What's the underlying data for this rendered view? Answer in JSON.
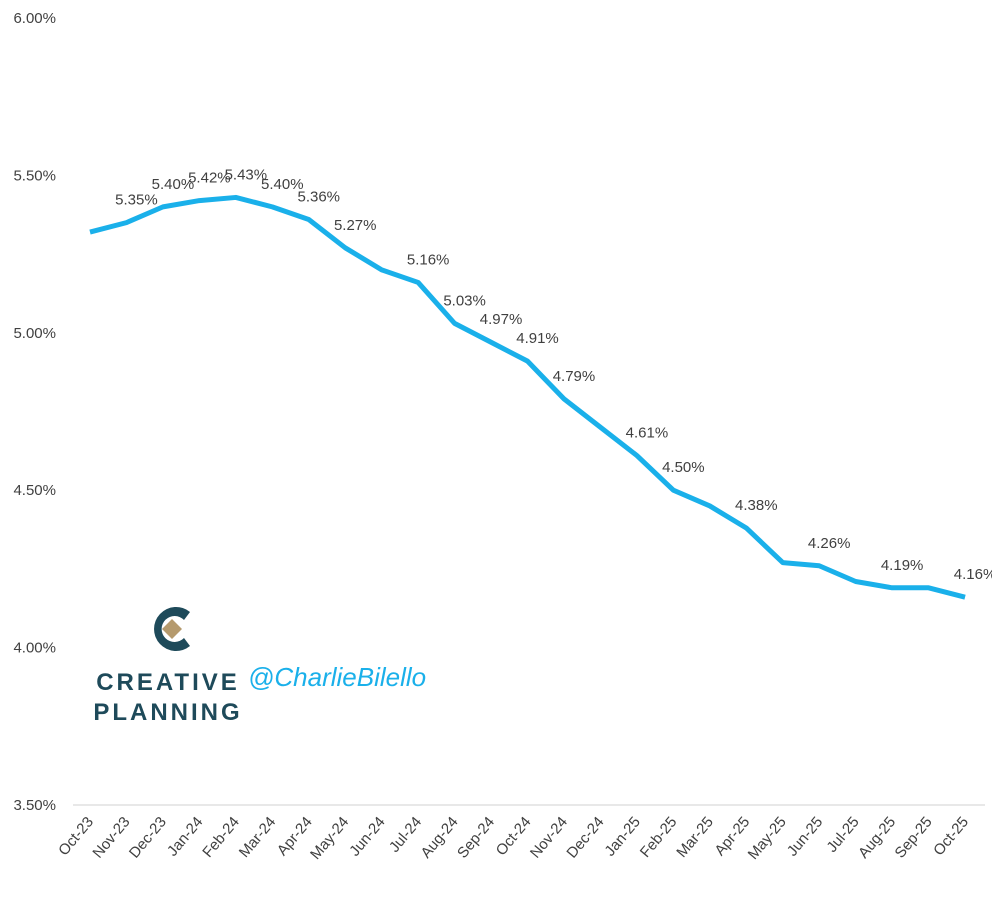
{
  "chart_data": {
    "type": "line",
    "categories": [
      "Oct-23",
      "Nov-23",
      "Dec-23",
      "Jan-24",
      "Feb-24",
      "Mar-24",
      "Apr-24",
      "May-24",
      "Jun-24",
      "Jul-24",
      "Aug-24",
      "Sep-24",
      "Oct-24",
      "Nov-24",
      "Dec-24",
      "Jan-25",
      "Feb-25",
      "Mar-25",
      "Apr-25",
      "May-25",
      "Jun-25",
      "Jul-25",
      "Aug-25",
      "Sep-25",
      "Oct-25"
    ],
    "series": [
      {
        "color": "#1ab0ea",
        "values": [
          5.32,
          5.35,
          5.4,
          5.42,
          5.43,
          5.4,
          5.36,
          5.27,
          5.2,
          5.16,
          5.03,
          4.97,
          4.91,
          4.79,
          4.7,
          4.61,
          4.5,
          4.45,
          4.38,
          4.27,
          4.26,
          4.21,
          4.19,
          4.19,
          4.16
        ],
        "value_labels": [
          null,
          "5.35%",
          "5.40%",
          "5.42%",
          "5.43%",
          "5.40%",
          "5.36%",
          "5.27%",
          null,
          "5.16%",
          "5.03%",
          "4.97%",
          "4.91%",
          "4.79%",
          null,
          "4.61%",
          "4.50%",
          null,
          "4.38%",
          null,
          "4.26%",
          null,
          "4.19%",
          null,
          "4.16%"
        ]
      }
    ],
    "ylim": [
      3.5,
      6.0
    ],
    "yticks": [
      {
        "value": 3.5,
        "label": "3.50%"
      },
      {
        "value": 4.0,
        "label": "4.00%"
      },
      {
        "value": 4.5,
        "label": "4.50%"
      },
      {
        "value": 5.0,
        "label": "5.00%"
      },
      {
        "value": 5.5,
        "label": "5.50%"
      },
      {
        "value": 6.0,
        "label": "6.00%"
      }
    ],
    "grid": false,
    "watermark": {
      "brand_line1": "CREATIVE",
      "brand_line2": "PLANNING",
      "handle": "@CharlieBilello"
    }
  }
}
